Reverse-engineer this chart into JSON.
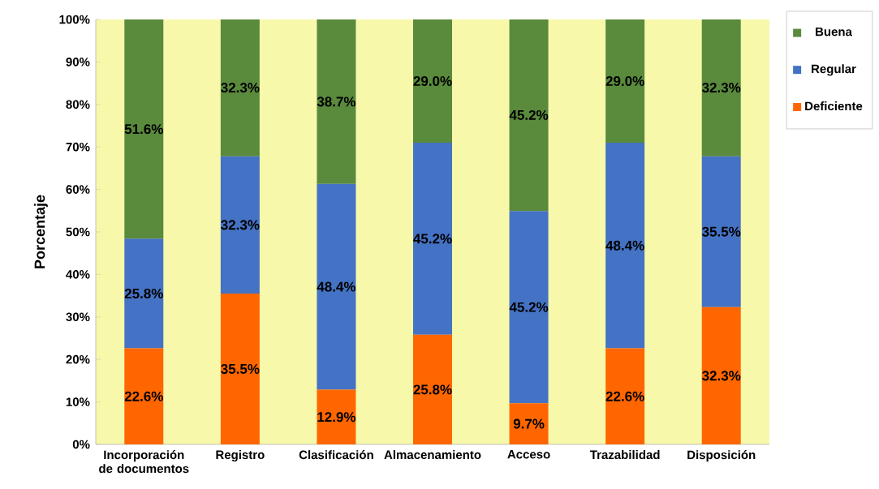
{
  "chart_data": {
    "type": "bar",
    "stacked": true,
    "ylabel": "Porcentaje",
    "categories": [
      "Incorporación de documentos",
      "Registro",
      "Clasificación",
      "Almacenamiento",
      "Acceso",
      "Trazabilidad",
      "Disposición"
    ],
    "series": [
      {
        "name": "Deficiente",
        "color": "#ff6600",
        "values": [
          22.6,
          35.5,
          12.9,
          25.8,
          9.7,
          22.6,
          32.3
        ],
        "value_labels": [
          "22.6%",
          "35.5%",
          "12.9%",
          "25.8%",
          "9.7%",
          "22.6%",
          "32.3%"
        ]
      },
      {
        "name": "Regular",
        "color": "#4472c4",
        "values": [
          25.8,
          32.3,
          48.4,
          45.2,
          45.2,
          48.4,
          35.5
        ],
        "value_labels": [
          "25.8%",
          "32.3%",
          "48.4%",
          "45.2%",
          "45.2%",
          "48.4%",
          "35.5%"
        ]
      },
      {
        "name": "Buena",
        "color": "#5a8a3c",
        "values": [
          51.6,
          32.3,
          38.7,
          29.0,
          45.2,
          29.0,
          32.3
        ],
        "value_labels": [
          "51.6%",
          "32.3%",
          "38.7%",
          "29.0%",
          "45.2%",
          "29.0%",
          "32.3%"
        ]
      }
    ],
    "ylim": [
      0,
      100
    ],
    "yticks": [
      {
        "value": 0,
        "label": "0%"
      },
      {
        "value": 10,
        "label": "10%"
      },
      {
        "value": 20,
        "label": "20%"
      },
      {
        "value": 30,
        "label": "30%"
      },
      {
        "value": 40,
        "label": "40%"
      },
      {
        "value": 50,
        "label": "50%"
      },
      {
        "value": 60,
        "label": "60%"
      },
      {
        "value": 70,
        "label": "70%"
      },
      {
        "value": 80,
        "label": "80%"
      },
      {
        "value": 90,
        "label": "90%"
      },
      {
        "value": 100,
        "label": "100%"
      }
    ],
    "legend": "right",
    "grid": false
  }
}
